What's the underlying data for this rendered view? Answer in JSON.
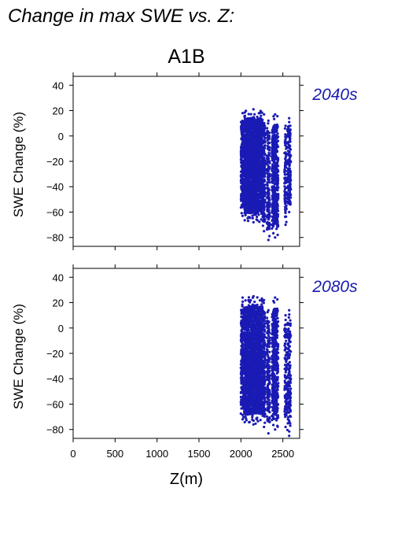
{
  "page": {
    "heading": "Change in max SWE vs. Z:",
    "scenario": "A1B"
  },
  "colors": {
    "points": "#1a1ab4",
    "label_accent": "#1a1ab4",
    "frame": "#000000"
  },
  "chart_data": [
    {
      "type": "scatter",
      "title": "A1B",
      "panel_label": "2040s",
      "xlabel": "Z(m)",
      "ylabel": "SWE Change (%)",
      "xlim": [
        0,
        2700
      ],
      "ylim": [
        -87,
        47
      ],
      "xticks": [
        0,
        500,
        1000,
        1500,
        2000,
        2500
      ],
      "yticks": [
        -80,
        -60,
        -40,
        -20,
        0,
        20,
        40
      ],
      "show_xtick_labels": false,
      "grid": false,
      "columns": [
        {
          "x0": 2000,
          "x1": 2040,
          "ymin": -63,
          "ymax": 18,
          "density": 60
        },
        {
          "x0": 2040,
          "x1": 2260,
          "ymin": -68,
          "ymax": 21,
          "density": 100
        },
        {
          "x0": 2260,
          "x1": 2290,
          "ymin": -75,
          "ymax": 17,
          "density": 55
        },
        {
          "x0": 2310,
          "x1": 2345,
          "ymin": -82,
          "ymax": 12,
          "density": 45
        },
        {
          "x0": 2370,
          "x1": 2445,
          "ymin": -80,
          "ymax": 17,
          "density": 60
        },
        {
          "x0": 2520,
          "x1": 2545,
          "ymin": -70,
          "ymax": 8,
          "density": 35
        },
        {
          "x0": 2555,
          "x1": 2595,
          "ymin": -60,
          "ymax": 14,
          "density": 40
        }
      ]
    },
    {
      "type": "scatter",
      "title": "",
      "panel_label": "2080s",
      "xlabel": "Z(m)",
      "ylabel": "SWE Change (%)",
      "xlim": [
        0,
        2700
      ],
      "ylim": [
        -87,
        47
      ],
      "xticks": [
        0,
        500,
        1000,
        1500,
        2000,
        2500
      ],
      "xtick_labels": [
        "0",
        "500",
        "1000",
        "1500",
        "2000",
        "2500"
      ],
      "yticks": [
        -80,
        -60,
        -40,
        -20,
        0,
        20,
        40
      ],
      "show_xtick_labels": true,
      "grid": false,
      "columns": [
        {
          "x0": 2000,
          "x1": 2040,
          "ymin": -72,
          "ymax": 24,
          "density": 60
        },
        {
          "x0": 2040,
          "x1": 2260,
          "ymin": -76,
          "ymax": 25,
          "density": 100
        },
        {
          "x0": 2260,
          "x1": 2290,
          "ymin": -78,
          "ymax": 22,
          "density": 55
        },
        {
          "x0": 2310,
          "x1": 2345,
          "ymin": -83,
          "ymax": 14,
          "density": 45
        },
        {
          "x0": 2370,
          "x1": 2445,
          "ymin": -80,
          "ymax": 24,
          "density": 60
        },
        {
          "x0": 2520,
          "x1": 2545,
          "ymin": -78,
          "ymax": 10,
          "density": 35
        },
        {
          "x0": 2555,
          "x1": 2595,
          "ymin": -85,
          "ymax": 14,
          "density": 40
        }
      ]
    }
  ]
}
